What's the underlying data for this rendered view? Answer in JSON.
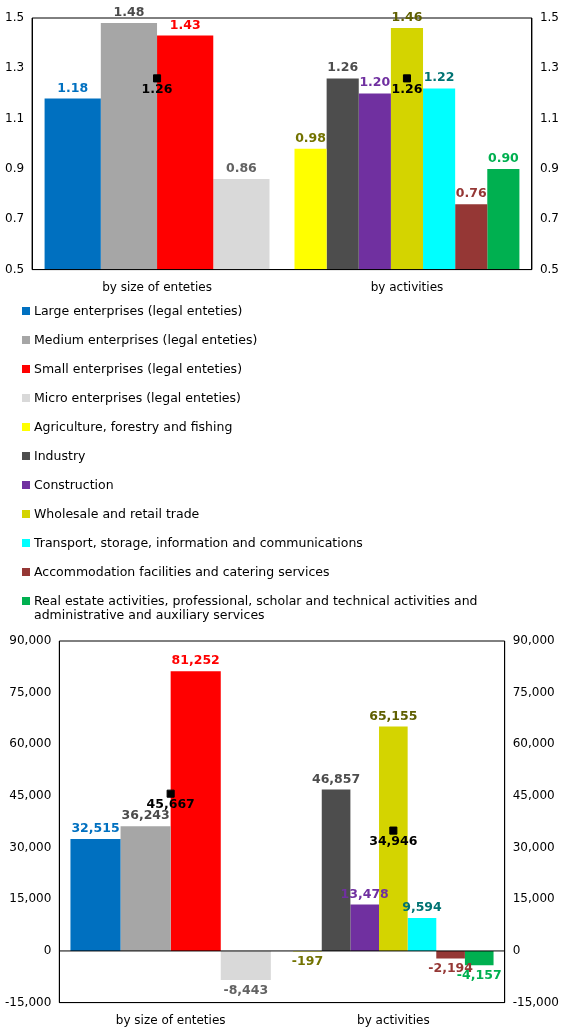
{
  "chart_data": [
    {
      "type": "bar",
      "categories": [
        "by size of enteties",
        "by activities"
      ],
      "ylim": [
        0.5,
        1.5
      ],
      "yticks": [
        0.5,
        0.7,
        0.9,
        1.1,
        1.3,
        1.5
      ],
      "y2lim": [
        0.5,
        1.5
      ],
      "y2ticks": [
        0.5,
        0.7,
        0.9,
        1.1,
        1.3,
        1.5
      ],
      "legend": "bottom",
      "series": [
        {
          "name": "Large enterprises  (legal enteties)",
          "color": "#0070c0",
          "values": [
            1.18,
            null
          ],
          "value_labels": [
            "1.18",
            null
          ]
        },
        {
          "name": "Medium enterprises  (legal enteties)",
          "color": "#a6a6a6",
          "values": [
            1.48,
            null
          ],
          "value_labels": [
            "1.48",
            null
          ]
        },
        {
          "name": "Small enterprises  (legal enteties)",
          "color": "#ff0000",
          "values": [
            1.43,
            null
          ],
          "value_labels": [
            "1.43",
            null
          ]
        },
        {
          "name": "Micro enterprises  (legal enteties)",
          "color": "#d9d9d9",
          "values": [
            0.86,
            null
          ],
          "value_labels": [
            "0.86",
            null
          ]
        },
        {
          "name": "Agriculture, forestry and fishing",
          "color": "#ffff00",
          "values": [
            null,
            0.98
          ],
          "value_labels": [
            null,
            "0.98"
          ]
        },
        {
          "name": "Industry",
          "color": "#4d4d4d",
          "values": [
            null,
            1.26
          ],
          "value_labels": [
            null,
            "1.26"
          ]
        },
        {
          "name": "Construction",
          "color": "#7030a0",
          "values": [
            null,
            1.2
          ],
          "value_labels": [
            null,
            "1.20"
          ]
        },
        {
          "name": "Wholesale and retail trade",
          "color": "#d4d400",
          "values": [
            null,
            1.46
          ],
          "value_labels": [
            null,
            "1.46"
          ]
        },
        {
          "name": "Transport, storage, information and communications",
          "color": "#00ffff",
          "values": [
            null,
            1.22
          ],
          "value_labels": [
            null,
            "1.22"
          ]
        },
        {
          "name": "Accommodation facilities and catering services",
          "color": "#953735",
          "values": [
            null,
            0.76
          ],
          "value_labels": [
            null,
            "0.76"
          ]
        },
        {
          "name": "Real estate activities, professional, scholar and technical activities and administrative and auxiliary services",
          "color": "#00b050",
          "values": [
            null,
            0.9
          ],
          "value_labels": [
            null,
            "0.90"
          ]
        },
        {
          "type": "scatter",
          "marker": "square",
          "color": "#000000",
          "x": [
            "by size of enteties",
            "by activities"
          ],
          "values": [
            1.26,
            1.26
          ],
          "value_labels": [
            "1.26",
            "1.26"
          ]
        }
      ]
    },
    {
      "type": "bar",
      "categories": [
        "by size of enteties",
        "by activities"
      ],
      "ylim": [
        -15000,
        90000
      ],
      "yticks": [
        {
          "value": -15000,
          "label": "-15,000"
        },
        {
          "value": 0,
          "label": "0"
        },
        {
          "value": 15000,
          "label": "15,000"
        },
        {
          "value": 30000,
          "label": "30,000"
        },
        {
          "value": 45000,
          "label": "45,000"
        },
        {
          "value": 60000,
          "label": "60,000"
        },
        {
          "value": 75000,
          "label": "75,000"
        },
        {
          "value": 90000,
          "label": "90,000"
        }
      ],
      "y2lim": [
        -15000,
        90000
      ],
      "y2ticks": [
        {
          "value": -15000,
          "label": "-15,000"
        },
        {
          "value": 0,
          "label": "0"
        },
        {
          "value": 15000,
          "label": "15,000"
        },
        {
          "value": 30000,
          "label": "30,000"
        },
        {
          "value": 45000,
          "label": "45,000"
        },
        {
          "value": 60000,
          "label": "60,000"
        },
        {
          "value": 75000,
          "label": "75,000"
        },
        {
          "value": 90000,
          "label": "90,000"
        }
      ],
      "series": [
        {
          "color": "#0070c0",
          "values": [
            32515,
            null
          ],
          "value_labels": [
            "32,515",
            null
          ]
        },
        {
          "color": "#a6a6a6",
          "values": [
            36243,
            null
          ],
          "value_labels": [
            "36,243",
            null
          ]
        },
        {
          "color": "#ff0000",
          "values": [
            81252,
            null
          ],
          "value_labels": [
            "81,252",
            null
          ]
        },
        {
          "color": "#d9d9d9",
          "values": [
            -8443,
            null
          ],
          "value_labels": [
            "-8,443",
            null
          ]
        },
        {
          "color": "#ffff00",
          "values": [
            null,
            -197
          ],
          "value_labels": [
            null,
            "-197"
          ]
        },
        {
          "color": "#4d4d4d",
          "values": [
            null,
            46857
          ],
          "value_labels": [
            null,
            "46,857"
          ]
        },
        {
          "color": "#7030a0",
          "values": [
            null,
            13478
          ],
          "value_labels": [
            null,
            "13,478"
          ]
        },
        {
          "color": "#d4d400",
          "values": [
            null,
            65155
          ],
          "value_labels": [
            null,
            "65,155"
          ]
        },
        {
          "color": "#00ffff",
          "values": [
            null,
            9594
          ],
          "value_labels": [
            null,
            "9,594"
          ]
        },
        {
          "color": "#953735",
          "values": [
            null,
            -2194
          ],
          "value_labels": [
            null,
            "-2,194"
          ]
        },
        {
          "color": "#00b050",
          "values": [
            null,
            -4157
          ],
          "value_labels": [
            null,
            "-4,157"
          ]
        },
        {
          "type": "scatter",
          "marker": "square",
          "color": "#000000",
          "x": [
            "by size of enteties",
            "by activities"
          ],
          "values": [
            45667,
            34946
          ],
          "value_labels": [
            "45,667",
            "34,946"
          ]
        }
      ]
    }
  ]
}
